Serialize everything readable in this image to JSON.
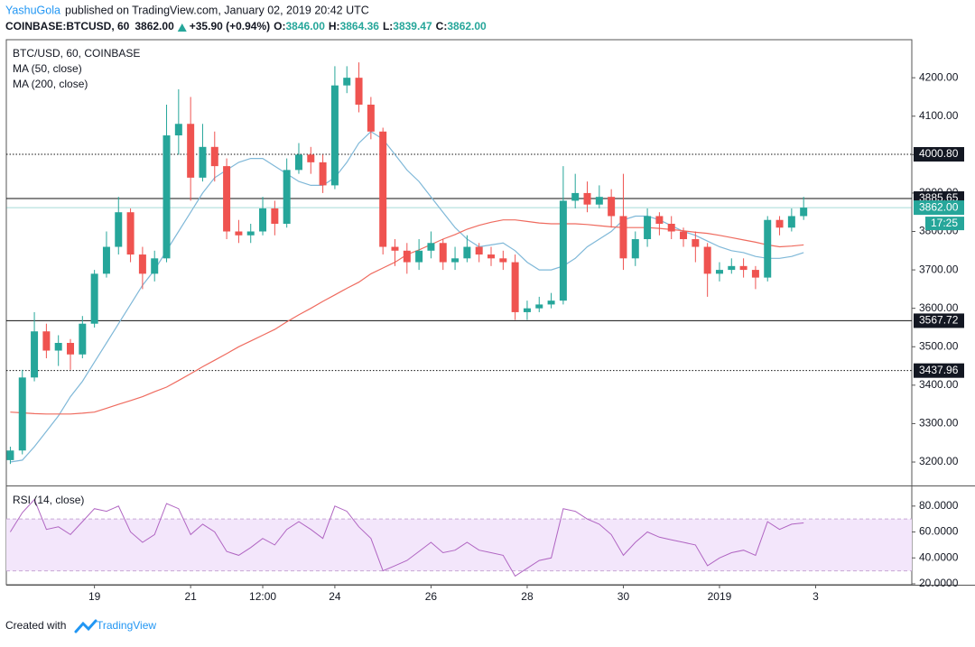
{
  "header": {
    "author": "YashuGola",
    "published": "published on TradingView.com, January 02, 2019 20:42 UTC",
    "symbol": "COINBASE:BTCUSD, 60",
    "last": "3862.00",
    "change": "+35.90 (+0.94%)",
    "o_label": "O:",
    "o": "3846.00",
    "h_label": "H:",
    "h": "3864.36",
    "l_label": "L:",
    "l": "3839.47",
    "c_label": "C:",
    "c": "3862.00"
  },
  "footer": {
    "prefix": "Created with",
    "brand": "TradingView"
  },
  "chart_data": {
    "type": "candlestick",
    "title": "BTC/USD, 60, COINBASE",
    "x": [
      -42,
      -36,
      -30,
      -24,
      -18,
      -12,
      -6,
      0,
      6,
      12,
      18,
      24,
      30,
      36,
      42,
      48,
      54,
      60,
      66,
      72,
      78,
      84,
      90,
      96,
      102,
      108,
      114,
      120,
      126,
      132,
      138,
      144,
      150,
      156,
      162,
      168,
      174,
      180,
      186,
      192,
      198,
      204,
      210,
      216,
      222,
      228,
      234,
      240,
      246,
      252,
      258,
      264,
      270,
      276,
      282,
      288,
      294,
      300,
      306,
      312,
      318,
      324,
      330,
      336,
      342,
      348,
      354
    ],
    "candles": {
      "open": [
        3205,
        3230,
        3420,
        3540,
        3490,
        3510,
        3480,
        3560,
        3690,
        3760,
        3850,
        3740,
        3690,
        3730,
        4050,
        4080,
        3940,
        4020,
        3970,
        3800,
        3790,
        3800,
        3860,
        3820,
        3960,
        4000,
        3980,
        3920,
        4180,
        4200,
        4130,
        4060,
        3760,
        3750,
        3720,
        3750,
        3770,
        3720,
        3730,
        3760,
        3740,
        3730,
        3720,
        3590,
        3600,
        3610,
        3620,
        3880,
        3900,
        3870,
        3890,
        3840,
        3730,
        3780,
        3840,
        3820,
        3800,
        3780,
        3760,
        3690,
        3700,
        3710,
        3700,
        3680,
        3830,
        3810,
        3840
      ],
      "high": [
        3240,
        3440,
        3590,
        3560,
        3530,
        3520,
        3580,
        3700,
        3800,
        3890,
        3860,
        3760,
        3750,
        4130,
        4170,
        4150,
        4080,
        4060,
        3990,
        3830,
        3820,
        3890,
        3880,
        3990,
        4030,
        4020,
        4000,
        4230,
        4230,
        4240,
        4150,
        4070,
        3780,
        3770,
        3780,
        3800,
        3780,
        3760,
        3790,
        3770,
        3760,
        3750,
        3740,
        3620,
        3630,
        3640,
        3970,
        3950,
        3930,
        3920,
        3910,
        3950,
        3800,
        3860,
        3850,
        3840,
        3810,
        3800,
        3770,
        3720,
        3730,
        3730,
        3710,
        3840,
        3840,
        3860,
        3890
      ],
      "low": [
        3195,
        3220,
        3410,
        3470,
        3450,
        3440,
        3470,
        3550,
        3680,
        3740,
        3720,
        3650,
        3670,
        3720,
        4000,
        3880,
        3930,
        3930,
        3780,
        3770,
        3770,
        3790,
        3790,
        3810,
        3950,
        3950,
        3900,
        3910,
        4160,
        4110,
        4040,
        3740,
        3710,
        3690,
        3700,
        3730,
        3700,
        3700,
        3720,
        3720,
        3710,
        3700,
        3570,
        3570,
        3590,
        3600,
        3610,
        3860,
        3850,
        3860,
        3810,
        3700,
        3710,
        3760,
        3790,
        3780,
        3760,
        3720,
        3630,
        3670,
        3690,
        3680,
        3650,
        3670,
        3790,
        3800,
        3830
      ],
      "close": [
        3230,
        3420,
        3540,
        3490,
        3510,
        3480,
        3560,
        3690,
        3760,
        3850,
        3740,
        3690,
        3730,
        4050,
        4080,
        3940,
        4020,
        3970,
        3800,
        3790,
        3800,
        3860,
        3820,
        3960,
        4000,
        3980,
        3920,
        4180,
        4200,
        4130,
        4060,
        3760,
        3750,
        3720,
        3750,
        3770,
        3720,
        3730,
        3760,
        3740,
        3730,
        3720,
        3590,
        3600,
        3610,
        3620,
        3880,
        3900,
        3870,
        3890,
        3840,
        3730,
        3780,
        3840,
        3820,
        3800,
        3780,
        3760,
        3690,
        3700,
        3710,
        3700,
        3680,
        3830,
        3810,
        3840,
        3862
      ]
    },
    "up_color": "#26a69a",
    "down_color": "#ef5350",
    "series": [
      {
        "name": "MA (50, close)",
        "color": "#7fb8d8",
        "values": [
          3200,
          3205,
          3240,
          3280,
          3320,
          3370,
          3410,
          3460,
          3510,
          3560,
          3610,
          3660,
          3700,
          3750,
          3800,
          3850,
          3900,
          3940,
          3960,
          3980,
          3990,
          3990,
          3970,
          3950,
          3930,
          3920,
          3920,
          3940,
          3980,
          4030,
          4060,
          4040,
          4000,
          3960,
          3930,
          3890,
          3850,
          3810,
          3780,
          3760,
          3765,
          3770,
          3750,
          3720,
          3700,
          3700,
          3710,
          3730,
          3760,
          3780,
          3800,
          3830,
          3840,
          3840,
          3830,
          3815,
          3800,
          3790,
          3775,
          3760,
          3750,
          3745,
          3735,
          3730,
          3730,
          3735,
          3745
        ]
      },
      {
        "name": "MA (200, close)",
        "color": "#ef6b5f",
        "values": [
          3330,
          3328,
          3326,
          3325,
          3325,
          3325,
          3327,
          3330,
          3340,
          3350,
          3360,
          3370,
          3383,
          3395,
          3412,
          3430,
          3448,
          3465,
          3482,
          3500,
          3515,
          3530,
          3545,
          3565,
          3583,
          3600,
          3618,
          3635,
          3652,
          3668,
          3690,
          3705,
          3720,
          3740,
          3752,
          3766,
          3780,
          3792,
          3806,
          3816,
          3824,
          3830,
          3830,
          3826,
          3822,
          3820,
          3820,
          3820,
          3818,
          3815,
          3812,
          3810,
          3810,
          3810,
          3808,
          3805,
          3802,
          3798,
          3795,
          3790,
          3784,
          3778,
          3772,
          3765,
          3760,
          3762,
          3765
        ]
      }
    ],
    "xlim": [
      -44,
      408
    ],
    "xticks": [
      {
        "value": 0,
        "label": "19"
      },
      {
        "value": 48,
        "label": "21"
      },
      {
        "value": 84,
        "label": "12:00"
      },
      {
        "value": 120,
        "label": "24"
      },
      {
        "value": 168,
        "label": "26"
      },
      {
        "value": 216,
        "label": "28"
      },
      {
        "value": 264,
        "label": "30"
      },
      {
        "value": 312,
        "label": "2019"
      },
      {
        "value": 360,
        "label": "3"
      }
    ],
    "ylim": [
      3139,
      4299
    ],
    "yticks": [
      {
        "value": 3200,
        "label": "3200.00"
      },
      {
        "value": 3300,
        "label": "3300.00"
      },
      {
        "value": 3400,
        "label": "3400.00"
      },
      {
        "value": 3500,
        "label": "3500.00"
      },
      {
        "value": 3600,
        "label": "3600.00"
      },
      {
        "value": 3700,
        "label": "3700.00"
      },
      {
        "value": 3800,
        "label": "3800.00"
      },
      {
        "value": 3900,
        "label": "3900.00"
      },
      {
        "value": 4000,
        "label": "4000.00"
      },
      {
        "value": 4100,
        "label": "4100.00"
      },
      {
        "value": 4200,
        "label": "4200.00"
      }
    ],
    "levels": [
      {
        "value": 4000.8,
        "label": "4000.80",
        "style": "dotted"
      },
      {
        "value": 3885.65,
        "label": "3885.65",
        "style": "solid"
      },
      {
        "value": 3567.72,
        "label": "3567.72",
        "style": "solid"
      },
      {
        "value": 3437.96,
        "label": "3437.96",
        "style": "dotted"
      }
    ],
    "current": {
      "value": 3862,
      "label": "3862.00",
      "countdown": "17:25",
      "color": "#26a69a"
    },
    "rsi": {
      "title": "RSI (14, close)",
      "color": "#b065c2",
      "band": [
        30,
        70
      ],
      "band_color": "#f3e6fb",
      "values": [
        60,
        75,
        85,
        62,
        64,
        58,
        68,
        78,
        76,
        80,
        60,
        52,
        58,
        82,
        78,
        58,
        66,
        60,
        45,
        42,
        48,
        55,
        50,
        62,
        68,
        62,
        55,
        80,
        76,
        64,
        55,
        30,
        34,
        38,
        45,
        52,
        44,
        46,
        52,
        46,
        44,
        42,
        26,
        32,
        38,
        40,
        78,
        76,
        70,
        66,
        58,
        42,
        52,
        60,
        56,
        54,
        52,
        50,
        34,
        40,
        44,
        46,
        42,
        68,
        62,
        66,
        67
      ],
      "ylim": [
        19.3,
        94.5
      ],
      "yticks": [
        {
          "value": 20,
          "label": "20.0000"
        },
        {
          "value": 40,
          "label": "40.0000"
        },
        {
          "value": 60,
          "label": "60.0000"
        },
        {
          "value": 80,
          "label": "80.0000"
        }
      ]
    }
  }
}
